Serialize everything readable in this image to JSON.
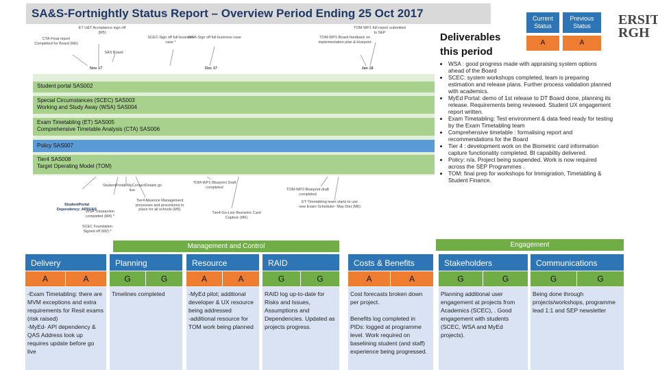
{
  "title": "SA&S-Fortnightly Status Report – Overview Period Ending 25 Oct 2017",
  "university_text": [
    "ERSITY",
    "RGH"
  ],
  "status": {
    "current_label": "Current Status",
    "previous_label": "Previous Status",
    "current_value": "A",
    "previous_value": "A"
  },
  "deliverables": {
    "title_line1": "Deliverables",
    "title_line2": "this period",
    "bullets": [
      "WSA : good progress made with appraising system options ahead of the Board",
      "SCEC: system workshops completed, team is preparing estimation and release plans. Further process validation planned with academics.",
      "MyEd Portal: demo of 1st release to DT Board done, planning its release. Requirements being reviewed. Student UX engagement report written.",
      "Exam Timetabling: Test environment & data feed ready for testing by the Exam Timetabling team",
      "Comprehensive timetable : formalising report and recommendations for the Board",
      "Tier 4 : development work on the Biometric card information capture functionality completed. BI capability delivered.",
      "Policy: n/a. Project being suspended. Work is now required across the SEP Programmes .",
      "TOM: final prep for workshops for Immigration, Timetabling & Student Finance."
    ]
  },
  "timeline": {
    "top_markers": [
      "ET U&T Acceptance sign off (M5)",
      "CTA-Final report Completed for Board (M6)",
      "SAS Board",
      "SCEC-Sign off full business case *",
      "WSA-Sign off full business case",
      "TOM-WP1 full report submitted to SEP",
      "TOM-WP1-Board feedback on implementation plan & blueprint"
    ],
    "month_labels": [
      "Nov 17",
      "Dec 17",
      "Jan 18"
    ],
    "rows": [
      {
        "lines": [
          "Student portal SAS002"
        ],
        "color": "#a9d18e"
      },
      {
        "lines": [
          "Special Circumstances (SCEC) SAS003",
          "Working and Study Away (WSA) SAS004"
        ],
        "color": "#a9d18e"
      },
      {
        "lines": [
          "Exam Timetabling (ET) SAS005",
          "Comprehensive Timetable Analysis (CTA) SAS006"
        ],
        "color": "#a9d18e"
      },
      {
        "lines": [
          "Policy SAS007"
        ],
        "color": "#5b9bd5"
      },
      {
        "lines": [
          "Tier4 SAS008",
          "Target Operating Model (TOM)"
        ],
        "color": "#a9d18e"
      }
    ],
    "bottom_markers": [
      "StudentPortal-MyContactDetails go live",
      "StudentPortal Dependency: API/UAS",
      "WSA Transaction completed (M4) *",
      "SCEC Foundation Signed off (M2) *",
      "Tier4 Absence Management processes and procedures in place for all schools (M5)",
      "TOM-WP1-Blueprint Draft completed",
      "Tier4-Go-Live Biometric Card Capture (M6)",
      "TOM-WP2-Blueprint draft completed",
      "ET-Timetabling team starts to use new Exam Scheduler- May Diet (M6)"
    ]
  },
  "sections": {
    "management": "Management and Control",
    "engagement": "Engagement"
  },
  "columns": [
    {
      "title": "Delivery",
      "rag": [
        "A",
        "A"
      ],
      "text": "-Exam Timetabling: there are MVM exceptions and extra requirements for Resit exams (risk raised)\n-MyEd- API dependency & QAS Address look up requires update before go live"
    },
    {
      "title": "Planning",
      "rag": [
        "G",
        "G"
      ],
      "text": "Timelines completed"
    },
    {
      "title": "Resource",
      "rag": [
        "A",
        "A"
      ],
      "text": "-MyEd pilot; additional developer & UX resource being addressed\n-additional resource for TOM work being planned"
    },
    {
      "title": "RAID",
      "rag": [
        "G",
        "G"
      ],
      "text": "RAID log up-to-date for Risks and Issues, Assumptions and Dependencies. Updated as projects progress."
    },
    {
      "title": "Costs & Benefits",
      "rag": [
        "A",
        "A"
      ],
      "text": "Cost forecasts broken down per project.\n\nBenefits log completed in PIDs: logged at programme level. Work required on baselining student (and staff) experience being progressed."
    },
    {
      "title": "Stakeholders",
      "rag": [
        "G",
        "G"
      ],
      "text": "Planning additional user engagement at projects from Academics (SCEC), . Good engagement with students (SCEC, WSA and MyEd projects)."
    },
    {
      "title": "Communications",
      "rag": [
        "G",
        "G"
      ],
      "text": "Being done through projects/workshops, programme lead 1:1 and SEP newsletter"
    }
  ],
  "colors": {
    "amber": "#ed7d31",
    "green": "#70ad47",
    "blue": "#2e75b6"
  }
}
